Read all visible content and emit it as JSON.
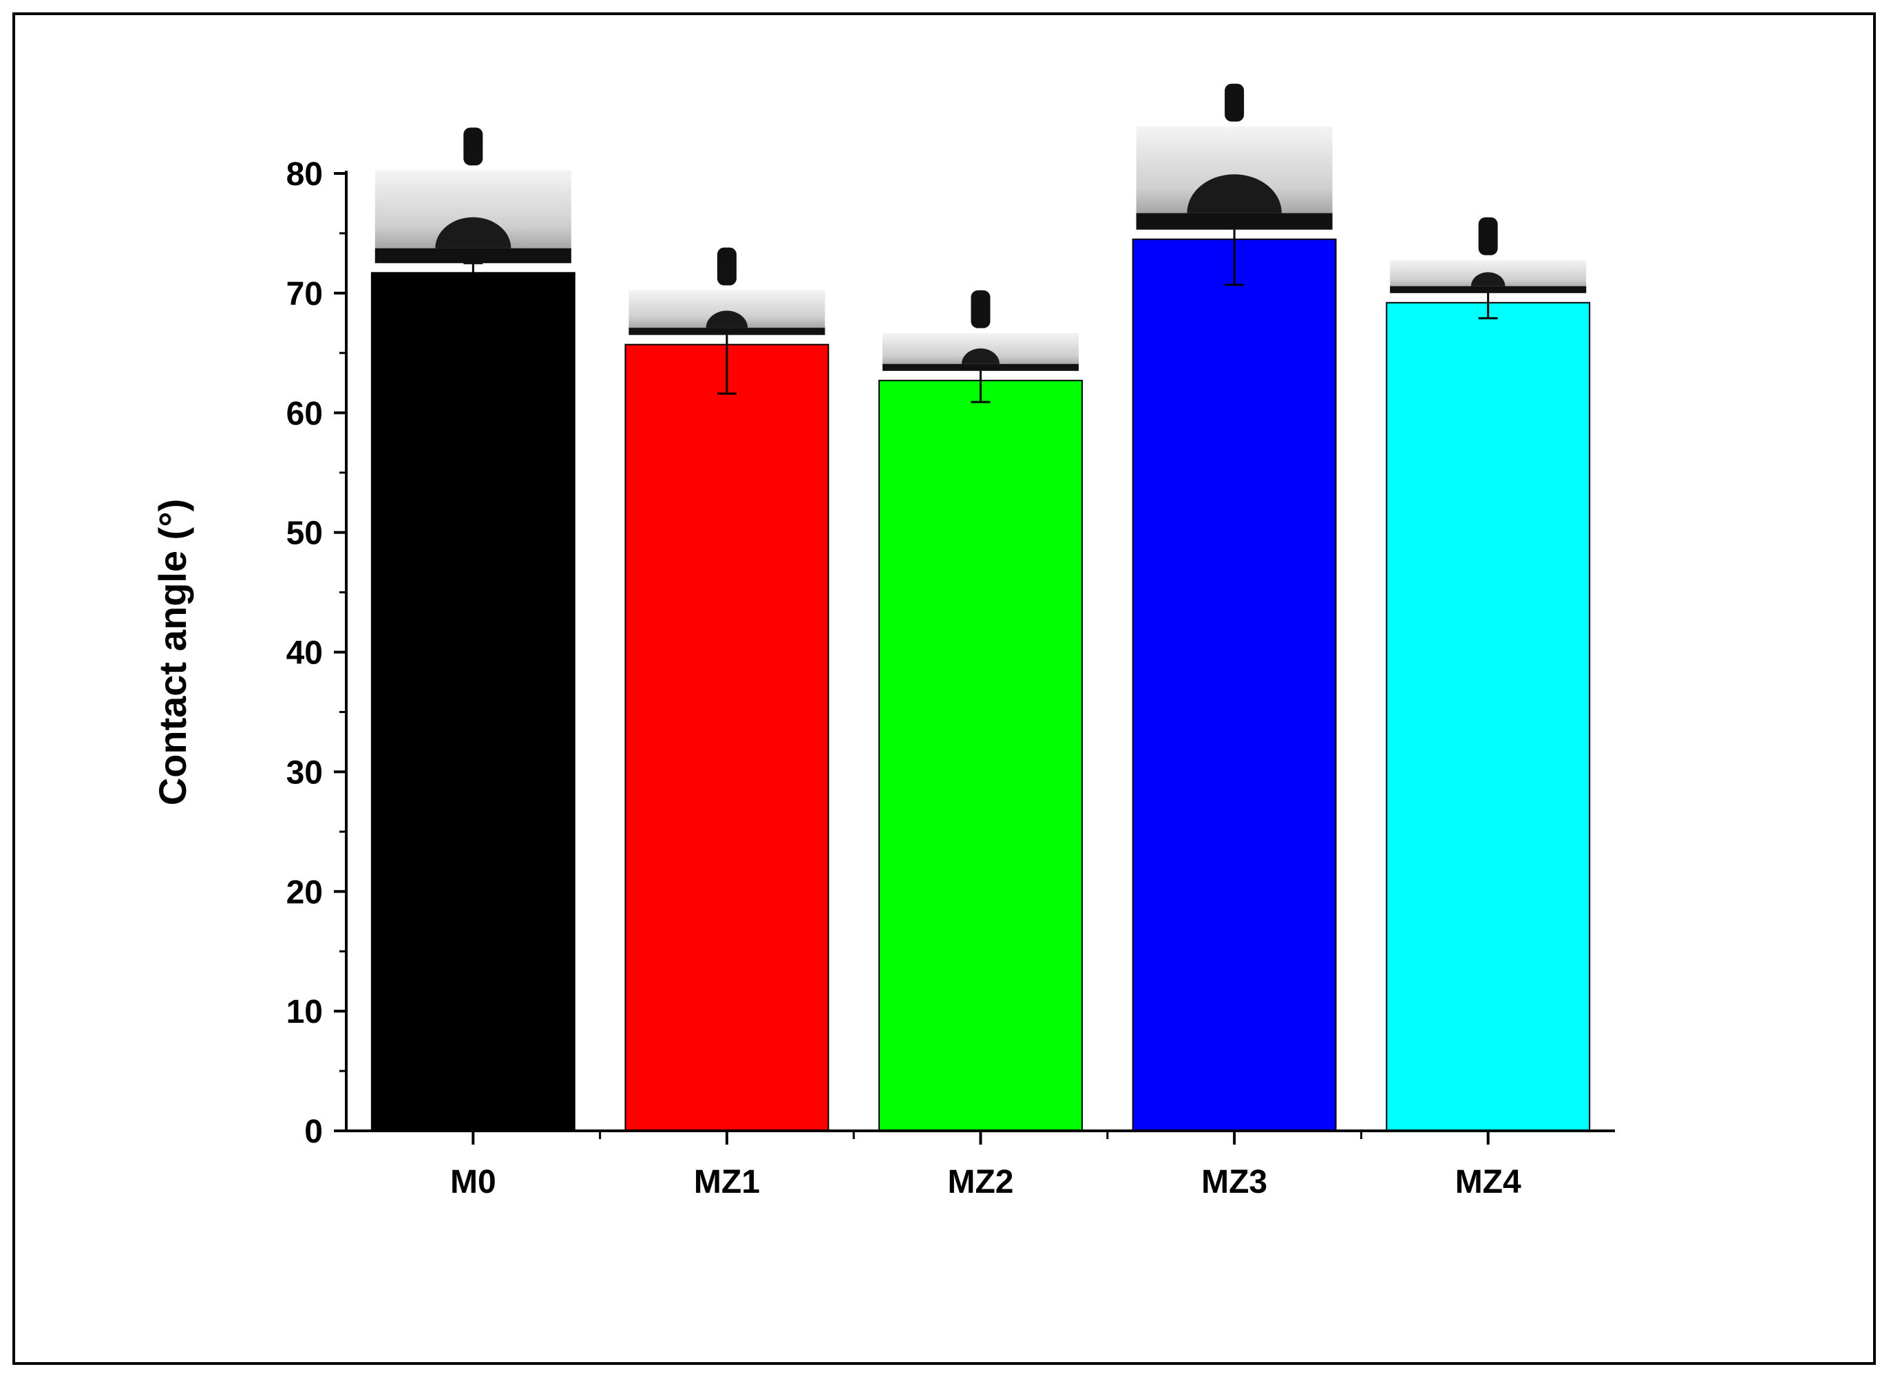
{
  "chart_data": {
    "type": "bar",
    "categories": [
      "M0",
      "MZ1",
      "MZ2",
      "MZ3",
      "MZ4"
    ],
    "values": [
      71.7,
      65.7,
      62.7,
      74.5,
      69.2
    ],
    "error": [
      0.8,
      4.1,
      1.8,
      3.8,
      1.3
    ],
    "colors": [
      "#000000",
      "#ff0000",
      "#00ff00",
      "#0000ff",
      "#00ffff"
    ],
    "xlabel": "",
    "ylabel": "Contact angle (°)",
    "ylim": [
      0,
      80
    ],
    "yticks": [
      0,
      10,
      20,
      30,
      40,
      50,
      60,
      70,
      80
    ],
    "grid": false,
    "legend": "none",
    "annotations": [
      "droplet-photo",
      "droplet-photo",
      "droplet-photo",
      "droplet-photo",
      "droplet-photo"
    ]
  }
}
